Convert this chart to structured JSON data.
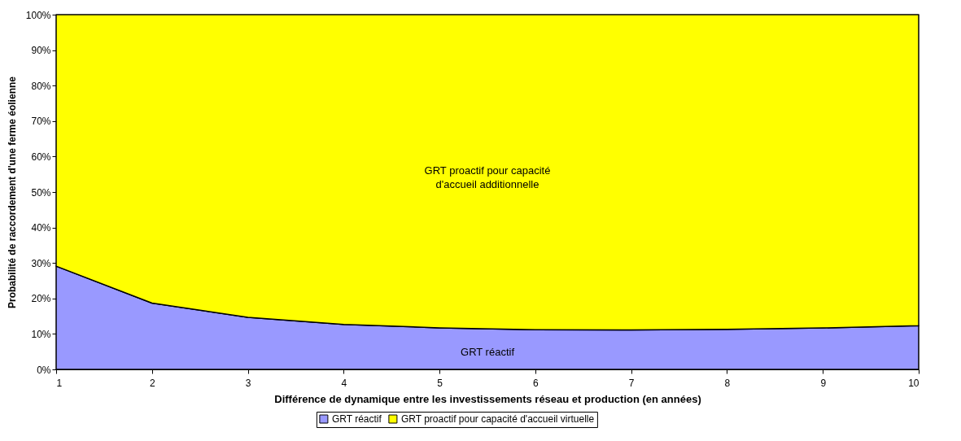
{
  "chart_data": {
    "type": "area",
    "stacked": true,
    "xlabel": "Différence de dynamique entre les investissements réseau et production (en années)",
    "ylabel": "Probabilité de raccordement d'une ferme éolienne",
    "x": [
      1,
      2,
      3,
      4,
      5,
      6,
      7,
      8,
      9,
      10
    ],
    "series": [
      {
        "name": "GRT réactif",
        "color": "#9999ff",
        "values": [
          29.1,
          18.7,
          14.7,
          12.7,
          11.7,
          11.2,
          11.1,
          11.3,
          11.7,
          12.3
        ]
      },
      {
        "name": "GRT proactif pour capacité d'accueil virtuelle",
        "color": "#ffff00",
        "values": [
          70.9,
          81.3,
          85.3,
          87.3,
          88.3,
          88.8,
          88.9,
          88.7,
          88.3,
          87.7
        ]
      }
    ],
    "xlim": [
      1,
      10
    ],
    "xticks": [
      1,
      2,
      3,
      4,
      5,
      6,
      7,
      8,
      9,
      10
    ],
    "ylim": [
      0,
      100
    ],
    "yticks": [
      {
        "value": 0,
        "label": "0%"
      },
      {
        "value": 10,
        "label": "10%"
      },
      {
        "value": 20,
        "label": "20%"
      },
      {
        "value": 30,
        "label": "30%"
      },
      {
        "value": 40,
        "label": "40%"
      },
      {
        "value": 50,
        "label": "50%"
      },
      {
        "value": 60,
        "label": "60%"
      },
      {
        "value": 70,
        "label": "70%"
      },
      {
        "value": 80,
        "label": "80%"
      },
      {
        "value": 90,
        "label": "90%"
      },
      {
        "value": 100,
        "label": "100%"
      }
    ],
    "annotations": [
      "GRT proactif pour capacité d'accueil additionnelle",
      "GRT réactif"
    ],
    "grid": false,
    "legend": "bottom",
    "marker": "none"
  }
}
